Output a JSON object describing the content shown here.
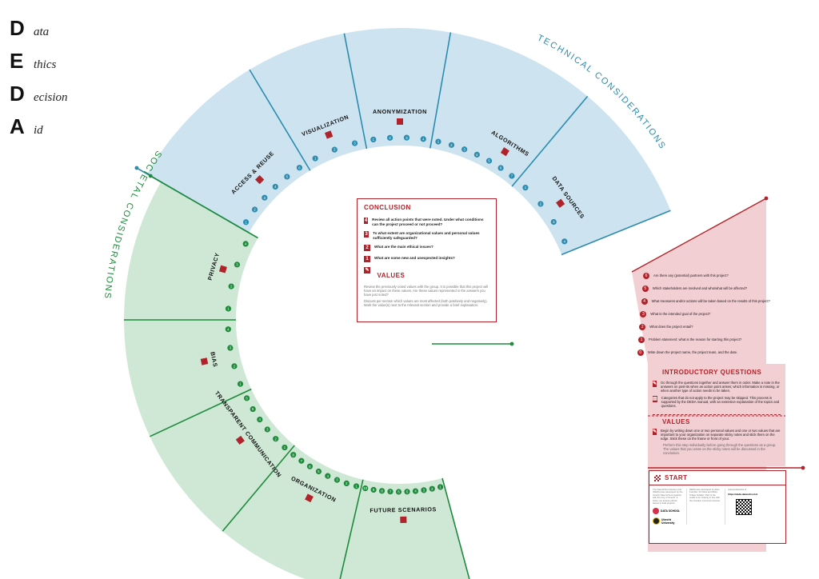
{
  "acronym": [
    {
      "letter": "D",
      "word": "ata"
    },
    {
      "letter": "E",
      "word": "thics"
    },
    {
      "letter": "D",
      "word": "ecision"
    },
    {
      "letter": "A",
      "word": "id"
    }
  ],
  "zones": {
    "technical": "TECHNICAL CONSIDERATIONS",
    "societal": "SOCIETAL CONSIDERATIONS"
  },
  "colors": {
    "blue": "#cde4f0",
    "blue_line": "#2b8cb0",
    "green": "#cfe8d5",
    "green_line": "#1e8a3c",
    "pink": "#f2cfd3",
    "red": "#b0232a"
  },
  "sections": [
    {
      "id": "access",
      "label": "ACCESS & REUSE",
      "zone": "technical"
    },
    {
      "id": "visualization",
      "label": "VISUALIZATION",
      "zone": "technical"
    },
    {
      "id": "anonymization",
      "label": "ANONYMIZATION",
      "zone": "technical"
    },
    {
      "id": "algorithms",
      "label": "ALGORITHMS",
      "zone": "technical"
    },
    {
      "id": "datasources",
      "label": "DATA SOURCES",
      "zone": "technical"
    },
    {
      "id": "privacy",
      "label": "PRIVACY",
      "zone": "societal"
    },
    {
      "id": "bias",
      "label": "BIAS",
      "zone": "societal"
    },
    {
      "id": "transparent",
      "label": "TRANSPARENT COMMUNICATION",
      "zone": "societal"
    },
    {
      "id": "organization",
      "label": "ORGANIZATION",
      "zone": "societal"
    },
    {
      "id": "future",
      "label": "FUTURE SCENARIOS",
      "zone": "societal"
    }
  ],
  "conclusion": {
    "title": "CONCLUSION",
    "items": [
      {
        "num": "4",
        "text": "Review all action points that were noted. Under what conditions can the project proceed or not proceed?"
      },
      {
        "num": "3",
        "text": "To what extent are organizational values and personal values sufficiently safeguarded?"
      },
      {
        "num": "2",
        "text": "What are the main ethical issues?"
      },
      {
        "num": "1",
        "text": "What are some new and unexpected insights?"
      }
    ],
    "values_title": "VALUES",
    "values_text1": "Review the previously noted values with the group. It is possible that this project will have an impact on these values. Are these values represented in the answers you have just noted?",
    "values_text2": "Discuss per section which values are most affected (both positively and negatively). Mark the value(s) next to the relevant section and provide a brief explanation."
  },
  "intro": {
    "title": "INTRODUCTORY QUESTIONS",
    "questions": [
      {
        "num": "6",
        "text": "Are there any (potential) partners with this project?"
      },
      {
        "num": "5",
        "text": "Which stakeholders are involved and who/what will be affected?"
      },
      {
        "num": "4",
        "text": "What measures and/or actions will be taken based on the results of this project?"
      },
      {
        "num": "3",
        "text": "What is the intended goal of the project?"
      },
      {
        "num": "2",
        "text": "What does the project entail?"
      },
      {
        "num": "1",
        "text": "Problem statement: what is the reason for starting this project?"
      },
      {
        "num": "0",
        "text": "Write down the project name, the project team, and the date."
      }
    ],
    "guide1": "Go through the questions together and answer them in order. Make a note in the answers on post-its when an action point arises; which information is missing, or when another type of action needs to be taken.",
    "guide2": "Categories that do not apply to the project may be skipped. This process is supported by the DEDA manual, with an extensive explanation of the topics and questions.",
    "values_title": "VALUES",
    "values_text": "Begin by writing down one or two personal values and one or two values that are important to your organization on separate sticky notes and stick them on the edge. Stick these on the frame or front of your.",
    "values_text2": "Perform this step individually before going through the questions as a group. The values that you wrote on the sticky notes will be discussed in the conclusion."
  },
  "start": {
    "title": "START",
    "col1": "The Data Ethics Decision Aid (DEDA) was developed by the Utrecht Data School together with the City of Utrecht. It helps you assess ethical issues in data projects.",
    "col2": "DEDA was developed by Aline Franzke, Iris Muis and Mirko Tobias Schäfer. Part of the toolkit is for sharing in line with the Creative Commons license.",
    "col3": "www.dedaworks.nl",
    "url": "https://deda.dataschool.nl",
    "org1": "DATA SCHOOL",
    "org2": "Utrecht University"
  }
}
